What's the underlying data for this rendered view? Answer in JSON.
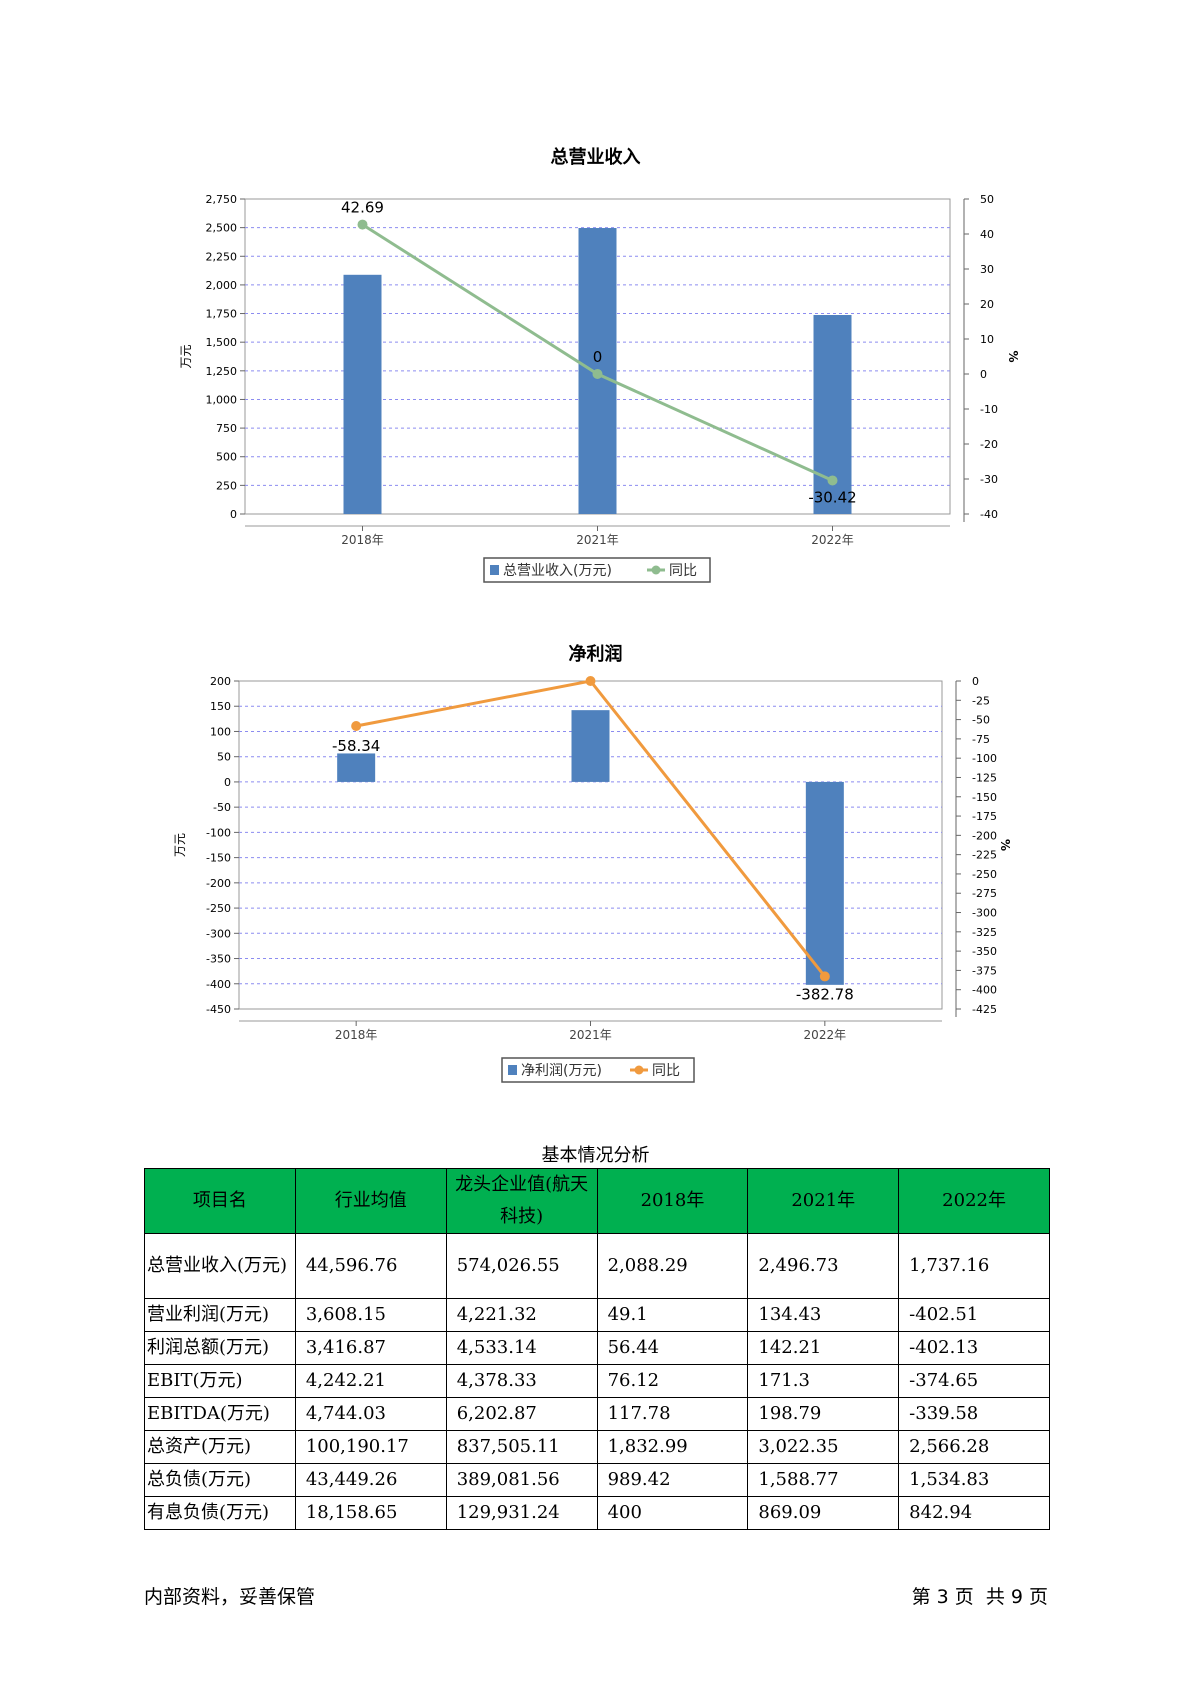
{
  "charts": [
    {
      "title": "总营业收入",
      "y_left_label": "万元",
      "y_right_label": "%",
      "legend": {
        "bar": "总营业收入(万元)",
        "line": "同比"
      },
      "bar_color": "#4f81bd",
      "line_color": "#8fbc8f"
    },
    {
      "title": "净利润",
      "y_left_label": "万元",
      "y_right_label": "%",
      "legend": {
        "bar": "净利润(万元)",
        "line": "同比"
      },
      "bar_color": "#4f81bd",
      "line_color": "#f09a3e"
    }
  ],
  "chart_data": [
    {
      "type": "bar",
      "title": "总营业收入",
      "categories": [
        "2018年",
        "2021年",
        "2022年"
      ],
      "series": [
        {
          "name": "总营业收入(万元)",
          "values": [
            2088.29,
            2496.73,
            1737.16
          ],
          "axis": "left"
        },
        {
          "name": "同比",
          "type": "line",
          "values": [
            42.69,
            0,
            -30.42
          ],
          "labels": [
            "42.69",
            "0",
            "-30.42"
          ],
          "axis": "right"
        }
      ],
      "ylabel": "万元",
      "ylabel_right": "%",
      "ylim": [
        0,
        2750
      ],
      "ylim_right": [
        -40,
        50
      ],
      "yticks": [
        0,
        250,
        500,
        750,
        1000,
        1250,
        1500,
        1750,
        2000,
        2250,
        2500,
        2750
      ],
      "ytick_labels": [
        "0",
        "250",
        "500",
        "750",
        "1,000",
        "1,250",
        "1,500",
        "1,750",
        "2,000",
        "2,250",
        "2,500",
        "2,750"
      ],
      "yticks_right": [
        -40,
        -30,
        -20,
        -10,
        0,
        10,
        20,
        30,
        40,
        50
      ],
      "grid": true,
      "legend_position": "bottom"
    },
    {
      "type": "bar",
      "title": "净利润",
      "categories": [
        "2018年",
        "2021年",
        "2022年"
      ],
      "series": [
        {
          "name": "净利润(万元)",
          "values": [
            56.44,
            142.21,
            -402.13
          ],
          "axis": "left"
        },
        {
          "name": "同比",
          "type": "line",
          "values": [
            -58.34,
            0,
            -382.78
          ],
          "labels": [
            "-58.34",
            "",
            "-382.78"
          ],
          "axis": "right"
        }
      ],
      "ylabel": "万元",
      "ylabel_right": "%",
      "ylim": [
        -450,
        200
      ],
      "ylim_right": [
        -425,
        0
      ],
      "yticks": [
        200,
        150,
        100,
        50,
        0,
        -50,
        -100,
        -150,
        -200,
        -250,
        -300,
        -350,
        -400,
        -450
      ],
      "yticks_right": [
        0,
        -25,
        -50,
        -75,
        -100,
        -125,
        -150,
        -175,
        -200,
        -225,
        -250,
        -275,
        -300,
        -325,
        -350,
        -375,
        -400,
        -425
      ],
      "grid": true,
      "legend_position": "bottom"
    }
  ],
  "table": {
    "title": "基本情况分析",
    "headers": [
      "项目名",
      "行业均值",
      "龙头企业值(航天科技)",
      "2018年",
      "2021年",
      "2022年"
    ],
    "rows": [
      [
        "总营业收入(万元)",
        "44,596.76",
        "574,026.55",
        "2,088.29",
        "2,496.73",
        "1,737.16"
      ],
      [
        "营业利润(万元)",
        "3,608.15",
        "4,221.32",
        "49.1",
        "134.43",
        "-402.51"
      ],
      [
        "利润总额(万元)",
        "3,416.87",
        "4,533.14",
        "56.44",
        "142.21",
        "-402.13"
      ],
      [
        "EBIT(万元)",
        "4,242.21",
        "4,378.33",
        "76.12",
        "171.3",
        "-374.65"
      ],
      [
        "EBITDA(万元)",
        "4,744.03",
        "6,202.87",
        "117.78",
        "198.79",
        "-339.58"
      ],
      [
        "总资产(万元)",
        "100,190.17",
        "837,505.11",
        "1,832.99",
        "3,022.35",
        "2,566.28"
      ],
      [
        "总负债(万元)",
        "43,449.26",
        "389,081.56",
        "989.42",
        "1,588.77",
        "1,534.83"
      ],
      [
        "有息负债(万元)",
        "18,158.65",
        "129,931.24",
        "400",
        "869.09",
        "842.94"
      ]
    ]
  },
  "footer": {
    "left": "内部资料，妥善保管",
    "right": "第 3 页  共 9 页"
  }
}
